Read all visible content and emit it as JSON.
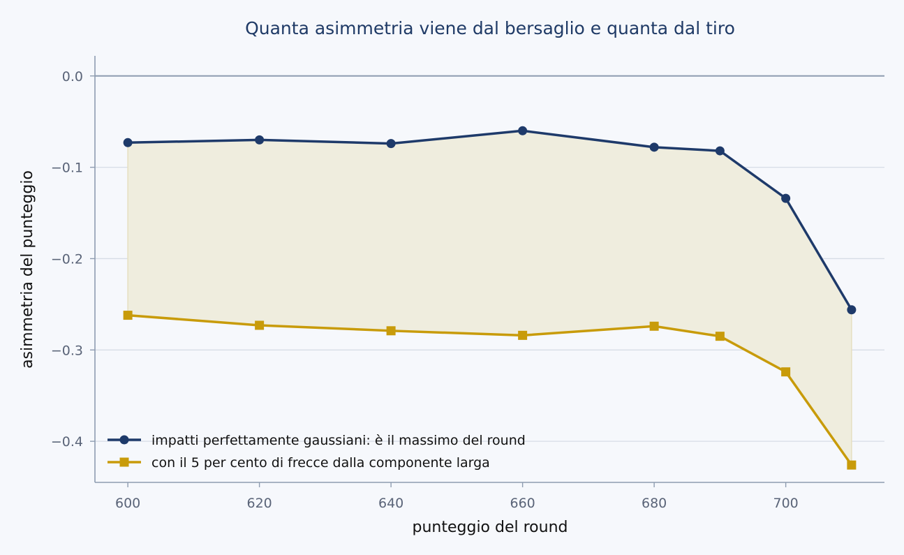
{
  "colors": {
    "background": "#f6f8fc",
    "title": "#1f3a66",
    "axis": "#8e9cb0",
    "grid": "#d7dce6",
    "series1": "#1e3a6a",
    "series2": "#c89b0a",
    "fill": "#efedde"
  },
  "chart_data": {
    "type": "line",
    "title": "Quanta asimmetria viene dal bersaglio e quanta dal tiro",
    "xlabel": "punteggio del round",
    "ylabel": "asimmetria del punteggio",
    "xlim": [
      595,
      715
    ],
    "ylim": [
      -0.445,
      0.022
    ],
    "xticks": [
      600,
      620,
      640,
      660,
      680,
      700
    ],
    "yticks": [
      0.0,
      -0.1,
      -0.2,
      -0.3,
      -0.4
    ],
    "xtick_labels": [
      "600",
      "620",
      "640",
      "660",
      "680",
      "700"
    ],
    "ytick_labels": [
      "0.0",
      "−0.1",
      "−0.2",
      "−0.3",
      "−0.4"
    ],
    "grid": "horizontal",
    "reference_line": 0.0,
    "fill_between_series": true,
    "legend_position": "lower-left",
    "x": [
      600,
      620,
      640,
      660,
      680,
      690,
      700,
      710
    ],
    "series": [
      {
        "name": "impatti perfettamente gaussiani: è il massimo del round",
        "marker": "circle",
        "color": "#1e3a6a",
        "values": [
          -0.073,
          -0.07,
          -0.074,
          -0.06,
          -0.078,
          -0.082,
          -0.134,
          -0.256
        ]
      },
      {
        "name": "con il 5 per cento di frecce dalla componente larga",
        "marker": "square",
        "color": "#c89b0a",
        "values": [
          -0.262,
          -0.273,
          -0.279,
          -0.284,
          -0.274,
          -0.285,
          -0.324,
          -0.426
        ]
      }
    ]
  }
}
